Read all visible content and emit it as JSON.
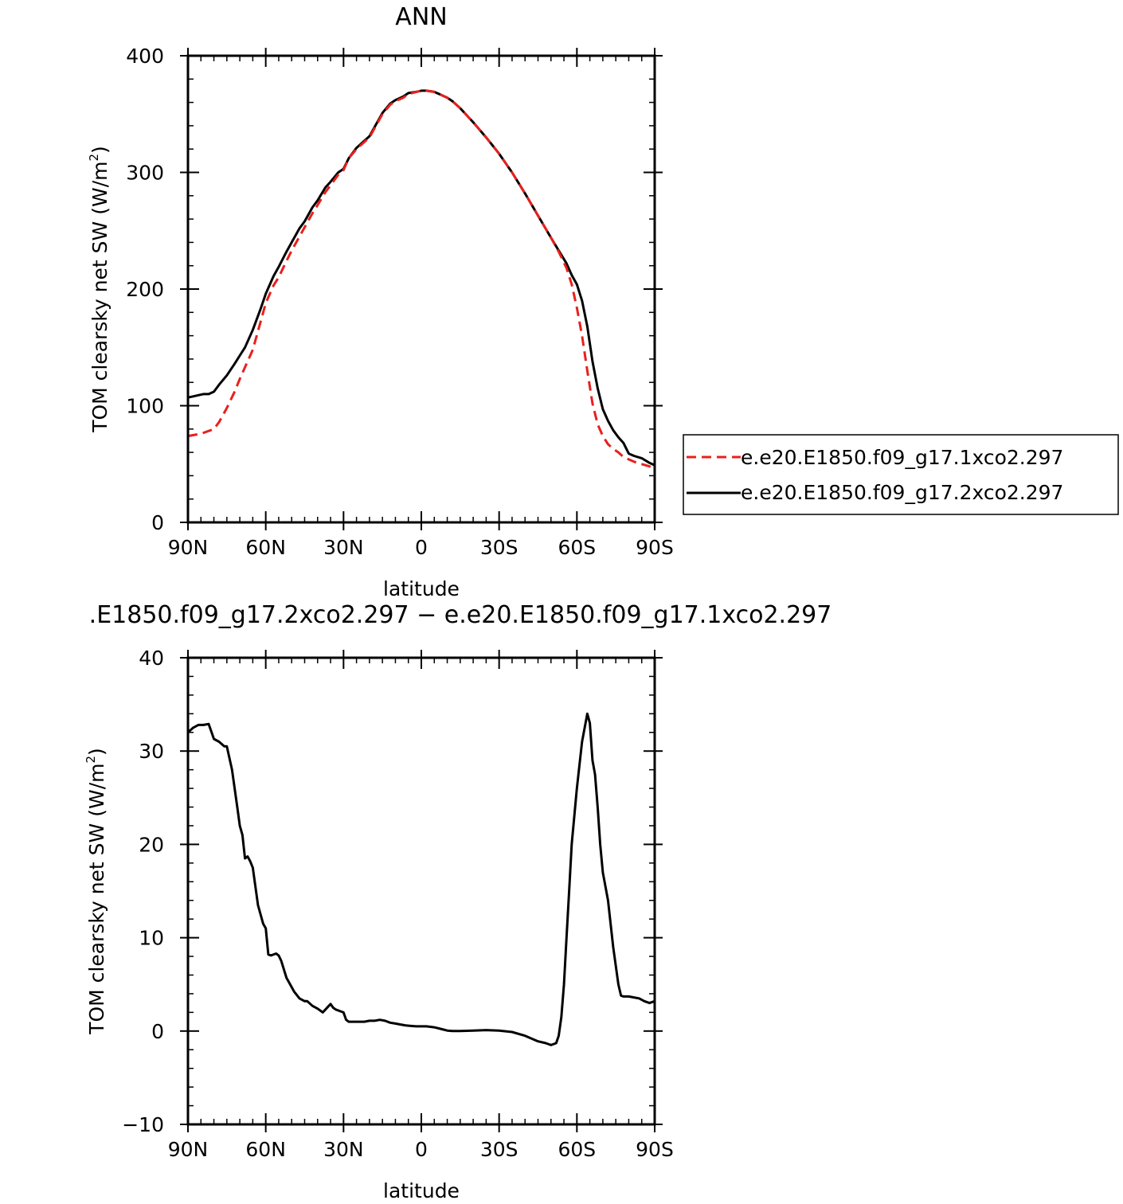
{
  "chart_data": [
    {
      "type": "line",
      "title": "ANN",
      "xlabel": "latitude",
      "ylabel": "TOM clearsky net SW (W/m²)",
      "ylabel_main": "TOM clearsky net SW (W/m",
      "ylabel_sup": "2",
      "ylabel_end": ")",
      "xlim": [
        90,
        -90
      ],
      "ylim": [
        0,
        400
      ],
      "x_ticks": [
        90,
        60,
        30,
        0,
        -30,
        -60,
        -90
      ],
      "x_tick_labels": [
        "90N",
        "60N",
        "30N",
        "0",
        "30S",
        "60S",
        "90S"
      ],
      "y_ticks": [
        0,
        100,
        200,
        300,
        400
      ],
      "y_tick_labels": [
        "0",
        "100",
        "200",
        "300",
        "400"
      ],
      "grid": false,
      "legend_position": "right",
      "series": [
        {
          "name": "e.e20.E1850.f09_g17.1xco2.297",
          "color": "#e8201c",
          "dash": "dashed",
          "x": [
            90,
            85,
            80,
            78,
            75,
            72,
            70,
            68,
            65,
            62,
            60,
            57,
            55,
            52,
            50,
            47,
            45,
            42,
            40,
            37,
            35,
            32,
            30,
            28,
            25,
            22,
            20,
            18,
            15,
            12,
            10,
            7,
            5,
            2,
            0,
            -2,
            -5,
            -7,
            -10,
            -12,
            -15,
            -20,
            -25,
            -30,
            -35,
            -40,
            -45,
            -50,
            -53,
            -56,
            -58,
            -60,
            -62,
            -64,
            -66,
            -68,
            -70,
            -72,
            -74,
            -76,
            -78,
            -80,
            -82,
            -85,
            -88,
            -90
          ],
          "y": [
            74,
            76,
            80,
            86,
            98,
            112,
            123,
            133,
            148,
            172,
            188,
            203,
            210,
            224,
            233,
            245,
            253,
            265,
            272,
            283,
            289,
            298,
            302,
            312,
            320,
            326,
            330,
            338,
            350,
            358,
            361,
            364,
            367,
            369,
            370,
            370,
            369,
            367,
            364,
            361,
            355,
            343,
            330,
            316,
            300,
            282,
            263,
            244,
            232,
            218,
            204,
            184,
            160,
            130,
            102,
            84,
            74,
            67,
            63,
            60,
            56,
            54,
            52,
            50,
            48,
            46
          ]
        },
        {
          "name": "e.e20.E1850.f09_g17.2xco2.297",
          "color": "#000000",
          "dash": "solid",
          "x": [
            90,
            88,
            86,
            84,
            82,
            80,
            78,
            75,
            72,
            70,
            68,
            65,
            62,
            60,
            57,
            55,
            52,
            50,
            47,
            45,
            42,
            40,
            37,
            35,
            32,
            30,
            28,
            25,
            22,
            20,
            18,
            15,
            12,
            10,
            7,
            5,
            2,
            0,
            -2,
            -5,
            -7,
            -10,
            -12,
            -15,
            -20,
            -25,
            -30,
            -35,
            -40,
            -45,
            -50,
            -53,
            -56,
            -58,
            -60,
            -62,
            -64,
            -66,
            -68,
            -70,
            -72,
            -74,
            -76,
            -78,
            -80,
            -82,
            -85,
            -88,
            -90
          ],
          "y": [
            107,
            108,
            109,
            110,
            110,
            112,
            118,
            126,
            136,
            143,
            150,
            165,
            183,
            196,
            211,
            219,
            232,
            240,
            252,
            258,
            270,
            276,
            287,
            292,
            300,
            303,
            312,
            321,
            327,
            331,
            339,
            351,
            359,
            362,
            365,
            368,
            369,
            370,
            370,
            369,
            367,
            364,
            361,
            355,
            343,
            330,
            316,
            300,
            282,
            263,
            244,
            233,
            222,
            212,
            204,
            190,
            168,
            138,
            115,
            97,
            87,
            79,
            73,
            68,
            59,
            57,
            55,
            51,
            49
          ]
        }
      ]
    },
    {
      "type": "line",
      "title": ".E1850.f09_g17.2xco2.297 − e.e20.E1850.f09_g17.1xco2.297",
      "xlabel": "latitude",
      "ylabel": "TOM clearsky net SW (W/m²)",
      "ylabel_main": "TOM clearsky net SW (W/m",
      "ylabel_sup": "2",
      "ylabel_end": ")",
      "xlim": [
        90,
        -90
      ],
      "ylim": [
        -10,
        40
      ],
      "x_ticks": [
        90,
        60,
        30,
        0,
        -30,
        -60,
        -90
      ],
      "x_tick_labels": [
        "90N",
        "60N",
        "30N",
        "0",
        "30S",
        "60S",
        "90S"
      ],
      "y_ticks": [
        -10,
        0,
        10,
        20,
        30,
        40
      ],
      "y_tick_labels": [
        "−10",
        "0",
        "10",
        "20",
        "30",
        "40"
      ],
      "grid": false,
      "series": [
        {
          "color": "#000000",
          "dash": "solid",
          "x": [
            90,
            88,
            86,
            84,
            82,
            80,
            78,
            76,
            75,
            73,
            71,
            70,
            69,
            68,
            67,
            66,
            65,
            63,
            61,
            60,
            59,
            58,
            56,
            55,
            54,
            52,
            51,
            49,
            47,
            45,
            44,
            42,
            40,
            38,
            36,
            35,
            34,
            33,
            32,
            30,
            29,
            28,
            26,
            24,
            22,
            20,
            18,
            16,
            14,
            12,
            10,
            8,
            6,
            4,
            2,
            0,
            -2,
            -5,
            -8,
            -10,
            -12,
            -15,
            -20,
            -25,
            -30,
            -35,
            -40,
            -45,
            -48,
            -50,
            -52,
            -53,
            -54,
            -55,
            -56,
            -57,
            -58,
            -60,
            -62,
            -64,
            -65,
            -66,
            -67,
            -68,
            -69,
            -70,
            -72,
            -74,
            -76,
            -77,
            -78,
            -80,
            -82,
            -84,
            -86,
            -88,
            -90
          ],
          "y": [
            32,
            32.5,
            32.8,
            32.8,
            32.9,
            31.3,
            31,
            30.5,
            30.5,
            28,
            24,
            22,
            21,
            18.5,
            18.7,
            18.2,
            17.5,
            13.5,
            11.5,
            11,
            8.2,
            8.1,
            8.3,
            8.1,
            7.5,
            5.7,
            5.2,
            4.2,
            3.5,
            3.2,
            3.2,
            2.7,
            2.4,
            2,
            2.6,
            2.9,
            2.5,
            2.3,
            2.2,
            2.0,
            1.2,
            1.0,
            1.0,
            1.0,
            1.0,
            1.1,
            1.1,
            1.2,
            1.1,
            0.9,
            0.8,
            0.7,
            0.6,
            0.55,
            0.5,
            0.5,
            0.5,
            0.4,
            0.2,
            0.05,
            0,
            0,
            0.05,
            0.1,
            0.05,
            -0.1,
            -0.5,
            -1.1,
            -1.3,
            -1.5,
            -1.3,
            -0.5,
            1.5,
            5,
            10,
            15,
            20,
            26,
            31,
            34,
            33,
            29,
            27.5,
            24,
            20,
            17,
            14,
            9,
            5,
            3.8,
            3.7,
            3.7,
            3.6,
            3.5,
            3.2,
            3.0,
            3.2
          ]
        }
      ]
    }
  ]
}
